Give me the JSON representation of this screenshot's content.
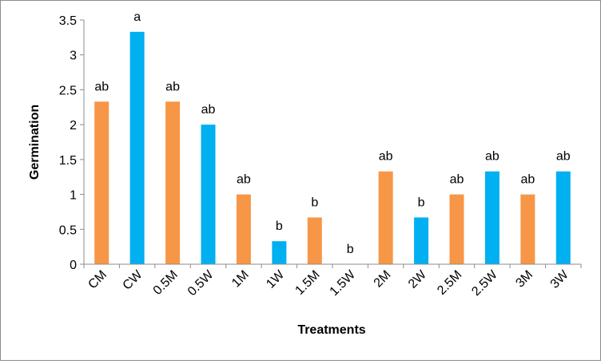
{
  "chart_data": {
    "type": "bar",
    "title": "",
    "xlabel": "Treatments",
    "ylabel": "Germination",
    "ylim": [
      0,
      3.5
    ],
    "yticks": [
      "0",
      "0.5",
      "1",
      "1.5",
      "2",
      "2.5",
      "3",
      "3.5"
    ],
    "grid": false,
    "legend": "none",
    "categories": [
      "CM",
      "CW",
      "0.5M",
      "0.5W",
      "1M",
      "1W",
      "1.5M",
      "1.5W",
      "2M",
      "2W",
      "2.5M",
      "2.5W",
      "3M",
      "3W"
    ],
    "values": [
      2.33,
      3.33,
      2.33,
      2.0,
      1.0,
      0.33,
      0.67,
      0.0,
      1.33,
      0.67,
      1.0,
      1.33,
      1.0,
      1.33
    ],
    "labels": [
      "ab",
      "a",
      "ab",
      "ab",
      "ab",
      "b",
      "b",
      "b",
      "ab",
      "b",
      "ab",
      "ab",
      "ab",
      "ab"
    ],
    "bar_colors": [
      "#F79646",
      "#00B0F0",
      "#F79646",
      "#00B0F0",
      "#F79646",
      "#00B0F0",
      "#F79646",
      "#00B0F0",
      "#F79646",
      "#00B0F0",
      "#F79646",
      "#00B0F0",
      "#F79646",
      "#00B0F0"
    ]
  }
}
